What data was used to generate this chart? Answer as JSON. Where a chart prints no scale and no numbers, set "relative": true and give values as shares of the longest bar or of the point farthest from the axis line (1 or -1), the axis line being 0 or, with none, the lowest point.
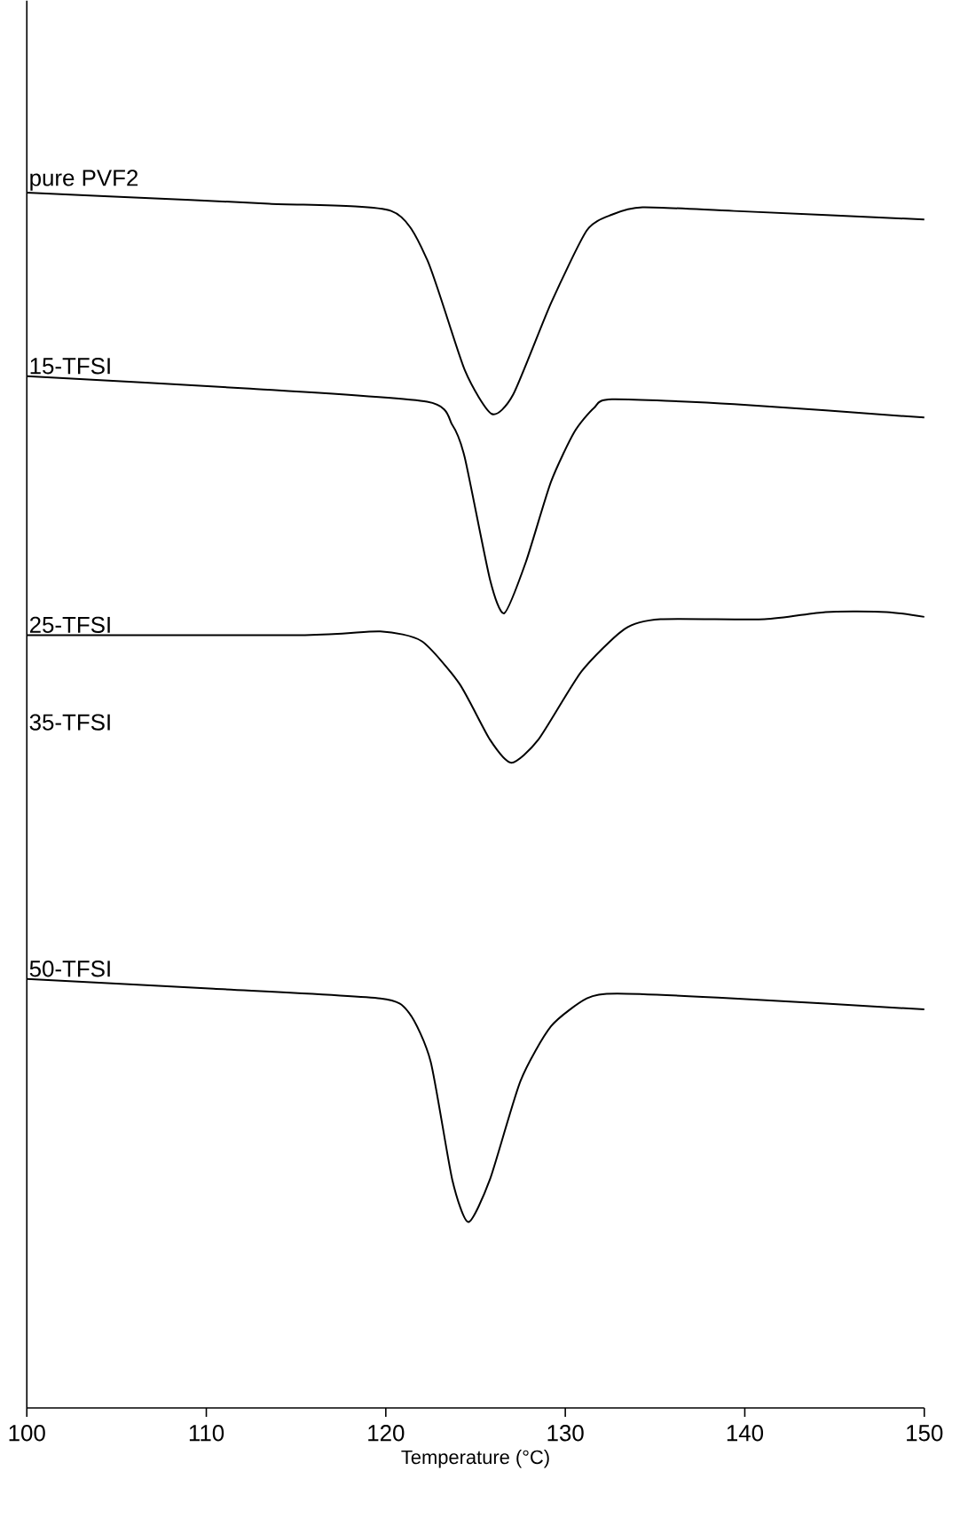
{
  "chart_data": {
    "type": "line",
    "relative": true,
    "xlabel": "Temperature (°C)",
    "xlim": [
      100,
      150
    ],
    "xticks": [
      100,
      110,
      120,
      130,
      140,
      150
    ],
    "series": [
      {
        "name": "pure PVF2",
        "color": "#000000",
        "x": [
          100,
          104.6,
          113.5,
          120.3,
          122.3,
          124.4,
          125.9,
          127.1,
          129.2,
          131.2,
          132.6,
          134.3,
          139.4,
          150
        ],
        "values": [
          1.0,
          0.997,
          0.991,
          0.985,
          0.945,
          0.854,
          0.818,
          0.834,
          0.909,
          0.969,
          0.982,
          0.988,
          0.985,
          0.978
        ]
      },
      {
        "name": "15-TFSI",
        "color": "#000000",
        "x": [
          100,
          112.2,
          122.3,
          123.7,
          124.4,
          125.8,
          126.6,
          127.8,
          129.2,
          130.5,
          131.6,
          132.6,
          139.4,
          150
        ],
        "values": [
          0.849,
          0.839,
          0.828,
          0.809,
          0.782,
          0.682,
          0.654,
          0.696,
          0.762,
          0.803,
          0.823,
          0.83,
          0.826,
          0.815
        ]
      },
      {
        "name": "25-TFSI",
        "color": "#000000",
        "x": [
          100,
          115.5,
          119.7,
          122,
          124.1,
          125.8,
          127,
          128.5,
          130.9,
          133.3,
          135.3,
          141.1,
          144.5,
          147.9,
          150
        ],
        "values": [
          0.636,
          0.636,
          0.639,
          0.631,
          0.596,
          0.55,
          0.531,
          0.55,
          0.606,
          0.641,
          0.649,
          0.649,
          0.655,
          0.655,
          0.651
        ]
      },
      {
        "name": "50-TFSI",
        "color": "#000000",
        "x": [
          100,
          110.4,
          119.7,
          121.3,
          122.5,
          123.7,
          124.6,
          125.8,
          127.5,
          129.2,
          131.2,
          132.9,
          139.4,
          150
        ],
        "values": [
          0.353,
          0.345,
          0.337,
          0.325,
          0.285,
          0.188,
          0.153,
          0.188,
          0.269,
          0.314,
          0.337,
          0.341,
          0.337,
          0.328
        ]
      }
    ],
    "annotations": [
      "35-TFSI"
    ]
  }
}
